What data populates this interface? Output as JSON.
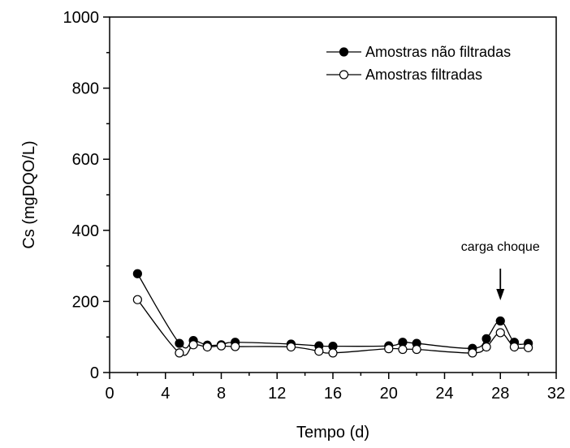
{
  "chart_data": {
    "type": "line",
    "xlabel": "Tempo (d)",
    "ylabel": "Cs (mgDQO/L)",
    "xlim": [
      0,
      32
    ],
    "ylim": [
      0,
      1000
    ],
    "xticks": [
      "0",
      "4",
      "8",
      "12",
      "16",
      "20",
      "24",
      "28",
      "32"
    ],
    "yticks": [
      "0",
      "200",
      "400",
      "600",
      "800",
      "1000"
    ],
    "grid": false,
    "legend_position": "top-right",
    "series": [
      {
        "name": "Amostras não filtradas",
        "marker": "filled-circle",
        "x": [
          2,
          5,
          6,
          7,
          8,
          9,
          13,
          15,
          16,
          20,
          21,
          22,
          26,
          27,
          28,
          29,
          30
        ],
        "y": [
          278,
          82,
          90,
          77,
          78,
          85,
          80,
          75,
          74,
          75,
          85,
          82,
          68,
          95,
          145,
          85,
          82
        ]
      },
      {
        "name": "Amostras filtradas",
        "marker": "open-circle",
        "x": [
          2,
          5,
          6,
          7,
          8,
          9,
          13,
          15,
          16,
          20,
          21,
          22,
          26,
          27,
          28,
          29,
          30
        ],
        "y": [
          205,
          55,
          78,
          72,
          75,
          73,
          72,
          60,
          55,
          67,
          65,
          65,
          55,
          72,
          112,
          72,
          70
        ]
      }
    ],
    "annotations": [
      {
        "text": "carga choque",
        "x": 28,
        "y": 145,
        "arrow": true
      }
    ]
  }
}
